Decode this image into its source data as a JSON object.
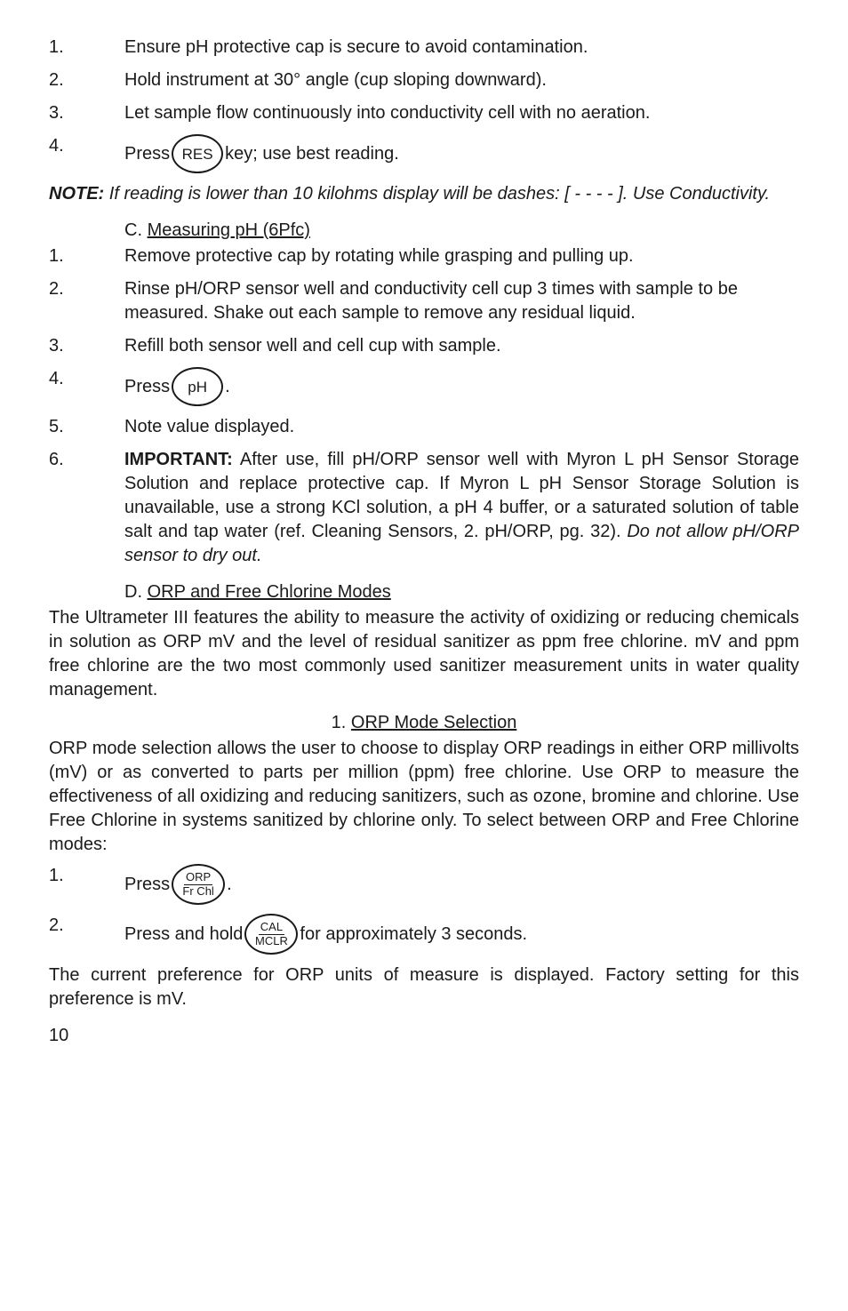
{
  "listA": [
    {
      "n": "1.",
      "t": "Ensure pH protective cap is secure to avoid contamination."
    },
    {
      "n": "2.",
      "t": "Hold instrument at 30° angle (cup sloping downward)."
    },
    {
      "n": "3.",
      "t": "Let sample flow continuously into conductivity cell with no aeration."
    }
  ],
  "a4": {
    "n": "4.",
    "pre": "Press ",
    "key": "RES",
    "post": " key; use best reading."
  },
  "note": {
    "label": "NOTE:",
    "body": "  If reading is lower than 10 kilohms display will be dashes: [ - - - - ]. Use Conductivity."
  },
  "secC": {
    "prefix": "C.  ",
    "title": "Measuring pH (6Pfc)"
  },
  "listC": [
    {
      "n": "1.",
      "t": "Remove protective cap by rotating while grasping and pulling up."
    },
    {
      "n": "2.",
      "t": "Rinse pH/ORP sensor well and conductivity cell cup 3 times with sample to be measured. Shake out each sample to remove any residual liquid."
    },
    {
      "n": "3.",
      "t": "Refill both sensor well and cell cup with sample."
    }
  ],
  "c4": {
    "n": "4.",
    "pre": "Press ",
    "key": "pH",
    "post": "."
  },
  "c5": {
    "n": "5.",
    "t": "Note value displayed."
  },
  "c6": {
    "n": "6.",
    "lead": "IMPORTANT:",
    "body": "  After use, fill pH/ORP sensor well with Myron L pH Sensor Storage Solution and replace protective cap. If Myron L pH Sensor Storage Solution is unavailable, use a strong KCl solution, a pH 4 buffer, or a saturated solution of table salt and tap water (ref. Cleaning Sensors, 2. pH/ORP, pg. 32). ",
    "tail": "Do not allow pH/ORP sensor to dry out."
  },
  "secD": {
    "prefix": "D.  ",
    "title": "ORP and Free Chlorine Modes"
  },
  "paraD": "The Ultrameter III features the ability to measure the activity of oxidizing or reducing chemicals in solution as ORP mV and the level of residual sanitizer as ppm free chlorine. mV and ppm free chlorine are the two most commonly used sanitizer measurement units in water quality management.",
  "sub1": {
    "prefix": "1.  ",
    "title": "ORP Mode Selection"
  },
  "para1": "ORP mode selection allows the user to choose to display ORP readings in either ORP millivolts (mV) or as converted to parts per million (ppm) free chlorine. Use ORP to measure the effectiveness of all oxidizing and reducing sanitizers, such as ozone, bromine and chlorine. Use Free Chlorine in systems sanitized by chlorine only. To select between ORP and Free Chlorine modes:",
  "s1": {
    "n": "1.",
    "pre": "Press ",
    "keyTop": "ORP",
    "keyBot": "Fr Chl",
    "post": "."
  },
  "s2": {
    "n": "2.",
    "pre": "Press and hold ",
    "keyTop": "CAL",
    "keyBot": "MCLR",
    "post": " for approximately 3 seconds."
  },
  "paraEnd": "The current preference for ORP units of measure is displayed. Factory setting for this preference is mV.",
  "pageNum": "10"
}
